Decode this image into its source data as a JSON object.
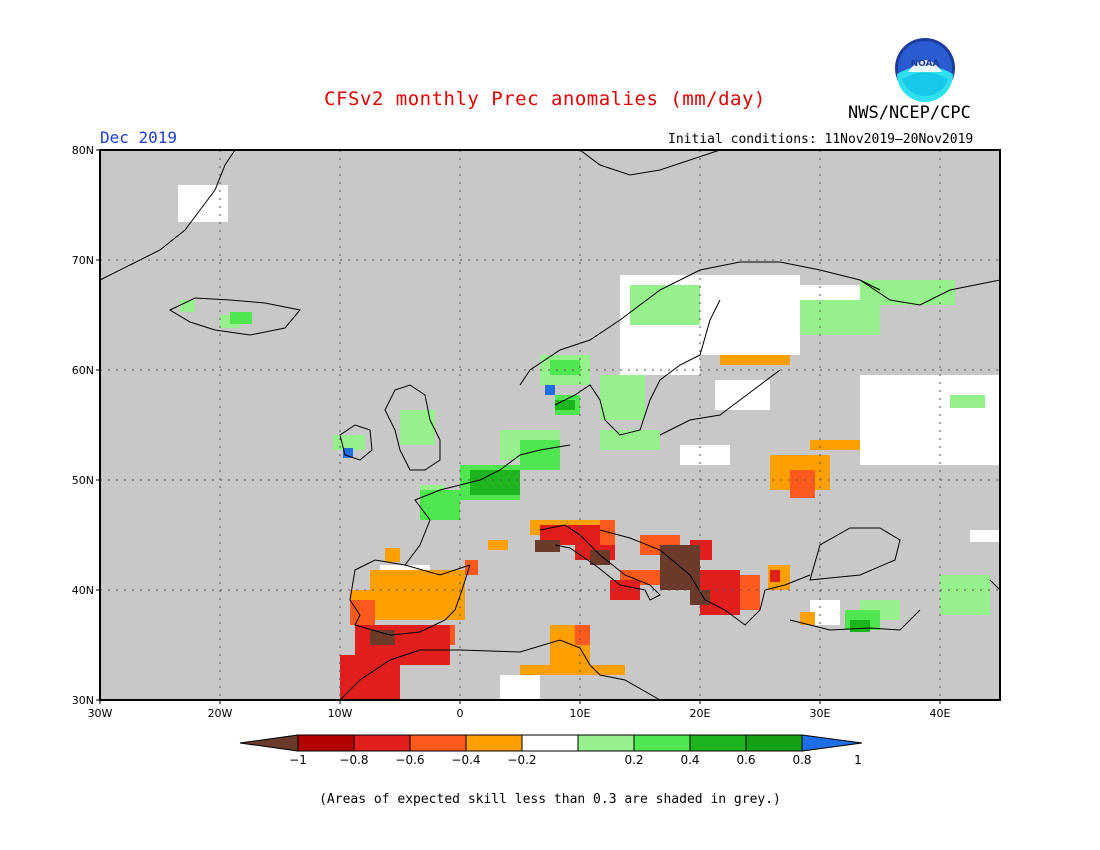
{
  "title": "CFSv2 monthly Prec anomalies (mm/day)",
  "agency": "NWS/NCEP/CPC",
  "logo_text": "NOAA",
  "month_label": "Dec 2019",
  "initial_conditions": "Initial conditions: 11Nov2019–20Nov2019",
  "footnote": "(Areas of expected skill less than 0.3 are shaded in grey.)",
  "map": {
    "lon_range": [
      -30,
      45
    ],
    "lat_range": [
      30,
      80
    ],
    "lat_labels": [
      "80N",
      "70N",
      "60N",
      "50N",
      "40N",
      "30N"
    ],
    "lon_labels": [
      "30W",
      "20W",
      "10W",
      "0",
      "10E",
      "20E",
      "30E",
      "40E"
    ],
    "background_color": "#c8c8c8",
    "coastline_color": "#000000"
  },
  "colorbar": {
    "ticks": [
      "−1",
      "−0.8",
      "−0.6",
      "−0.4",
      "−0.2",
      "0.2",
      "0.4",
      "0.6",
      "0.8",
      "1"
    ],
    "colors": [
      "#6b3a2a",
      "#b40000",
      "#e01e1e",
      "#ff5a1e",
      "#ffa000",
      "#ffffff",
      "#96f08c",
      "#50e650",
      "#1eb41e",
      "#14a014",
      "#1e6ee6"
    ]
  }
}
